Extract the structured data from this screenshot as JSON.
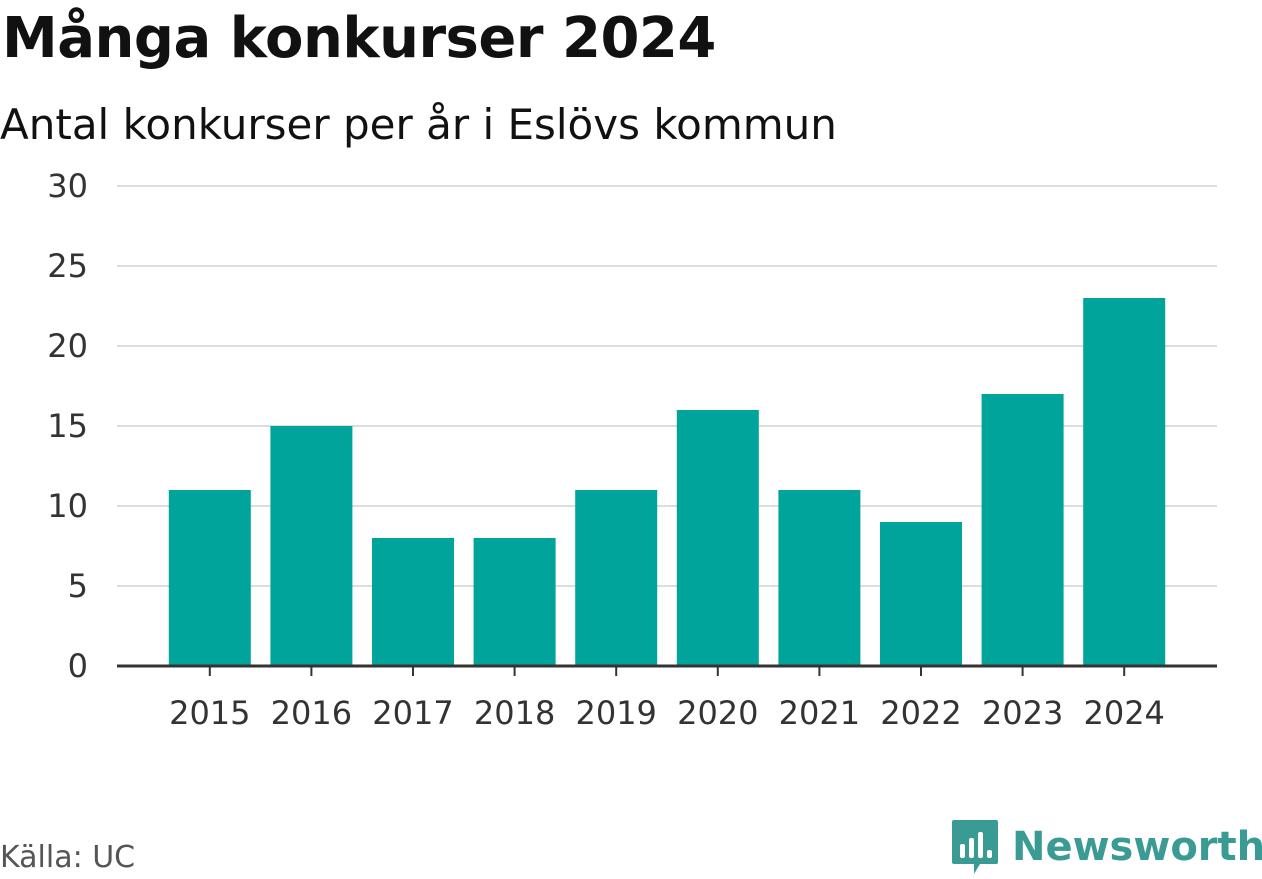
{
  "header": {
    "title": "Många konkurser 2024",
    "subtitle": "Antal konkurser per år i Eslövs kommun"
  },
  "footer": {
    "source": "Källa: UC",
    "brand": "Newsworthy",
    "brand_icon": "newsworthy-logo-icon"
  },
  "colors": {
    "bar": "#00a49a",
    "grid": "#dddddd",
    "axis": "#333333",
    "brand": "#3a9a94"
  },
  "chart_data": {
    "type": "bar",
    "title": "Många konkurser 2024",
    "subtitle": "Antal konkurser per år i Eslövs kommun",
    "categories": [
      "2015",
      "2016",
      "2017",
      "2018",
      "2019",
      "2020",
      "2021",
      "2022",
      "2023",
      "2024"
    ],
    "values": [
      11,
      15,
      8,
      8,
      11,
      16,
      11,
      9,
      17,
      23
    ],
    "xlabel": "",
    "ylabel": "",
    "ylim": [
      0,
      30
    ],
    "yticks": [
      0,
      5,
      10,
      15,
      20,
      25,
      30
    ],
    "grid": true,
    "legend": "none"
  }
}
